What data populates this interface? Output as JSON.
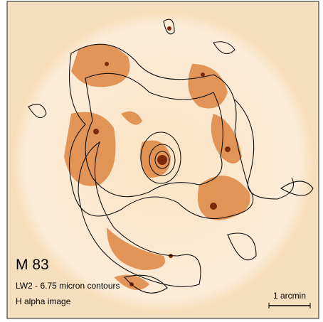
{
  "title": "M 83",
  "caption_lines": [
    "LW2 - 6.75 micron contours",
    "H alpha image"
  ],
  "scale_bar": "1 arcmin"
}
